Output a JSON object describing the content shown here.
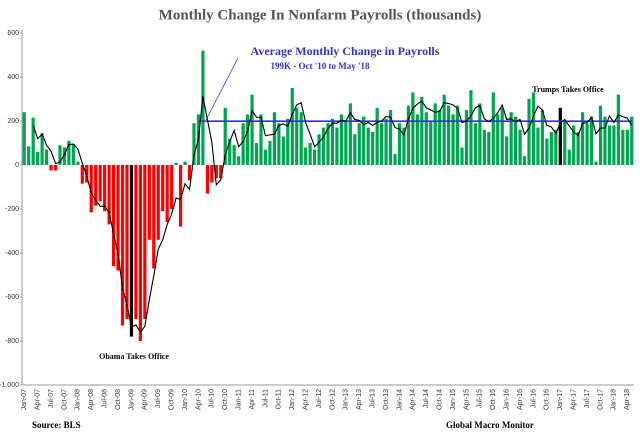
{
  "chart_data": {
    "type": "bar",
    "title": "Monthly Change In Nonfarm  Payrolls (thousands)",
    "categories": [
      "Jan-07",
      null,
      null,
      "Apr-07",
      null,
      null,
      "Jul-07",
      null,
      null,
      "Oct-07",
      null,
      null,
      "Jan-08",
      null,
      null,
      "Apr-08",
      null,
      null,
      "Jul-08",
      null,
      null,
      "Oct-08",
      null,
      null,
      "Jan-09",
      null,
      null,
      "Apr-09",
      null,
      null,
      "Jul-09",
      null,
      null,
      "Oct-09",
      null,
      null,
      "Jan-10",
      null,
      null,
      "Apr-10",
      null,
      null,
      "Jul-10",
      null,
      null,
      "Oct-10",
      null,
      null,
      "Jan-11",
      null,
      null,
      "Apr-11",
      null,
      null,
      "Jul-11",
      null,
      null,
      "Oct-11",
      null,
      null,
      "Jan-12",
      null,
      null,
      "Apr-12",
      null,
      null,
      "Jul-12",
      null,
      null,
      "Oct-12",
      null,
      null,
      "Jan-13",
      null,
      null,
      "Apr-13",
      null,
      null,
      "Jul-13",
      null,
      null,
      "Oct-13",
      null,
      null,
      "Jan-14",
      null,
      null,
      "Apr-14",
      null,
      null,
      "Jul-14",
      null,
      null,
      "Oct-14",
      null,
      null,
      "Jan-15",
      null,
      null,
      "Apr-15",
      null,
      null,
      "Jul-15",
      null,
      null,
      "Oct-15",
      null,
      null,
      "Jan-16",
      null,
      null,
      "Apr-16",
      null,
      null,
      "Jul-16",
      null,
      null,
      "Oct-16",
      null,
      null,
      "Jan-17",
      null,
      null,
      "Apr-17",
      null,
      null,
      "Jul-17",
      null,
      null,
      "Oct-17",
      null,
      null,
      "Jan-18",
      null,
      null,
      "Apr-18",
      null
    ],
    "values": [
      240,
      85,
      215,
      60,
      145,
      70,
      -25,
      -25,
      90,
      80,
      110,
      95,
      15,
      -85,
      -80,
      -215,
      -185,
      -165,
      -210,
      -270,
      -460,
      -480,
      -730,
      -700,
      -780,
      -700,
      -800,
      -700,
      -340,
      -470,
      -340,
      -210,
      -260,
      -200,
      10,
      -280,
      15,
      -70,
      190,
      230,
      520,
      -130,
      -80,
      -60,
      -60,
      260,
      120,
      90,
      40,
      190,
      230,
      320,
      100,
      230,
      70,
      110,
      240,
      190,
      130,
      210,
      350,
      260,
      240,
      80,
      100,
      70,
      140,
      170,
      190,
      210,
      170,
      230,
      200,
      280,
      140,
      190,
      220,
      170,
      150,
      260,
      190,
      210,
      250,
      50,
      190,
      170,
      270,
      330,
      230,
      310,
      240,
      200,
      280,
      250,
      320,
      270,
      230,
      270,
      80,
      250,
      340,
      190,
      280,
      160,
      150,
      330,
      230,
      260,
      130,
      240,
      220,
      160,
      40,
      300,
      330,
      170,
      250,
      120,
      150,
      160,
      260,
      200,
      70,
      180,
      150,
      240,
      190,
      220,
      15,
      270,
      220,
      180,
      180,
      320,
      160,
      160,
      220
    ],
    "trend_values": [
      null,
      null,
      180,
      120,
      140,
      90,
      63,
      7,
      13,
      48,
      93,
      95,
      73,
      8,
      -50,
      -127,
      -160,
      -188,
      -187,
      -215,
      -313,
      -403,
      -557,
      -637,
      -737,
      -727,
      -760,
      -733,
      -613,
      -503,
      -383,
      -340,
      -270,
      -223,
      -150,
      -157,
      -85,
      -112,
      45,
      117,
      313,
      207,
      103,
      -90,
      -67,
      47,
      107,
      157,
      83,
      107,
      153,
      247,
      217,
      217,
      133,
      137,
      140,
      180,
      187,
      177,
      230,
      273,
      283,
      193,
      140,
      83,
      103,
      127,
      167,
      190,
      190,
      203,
      200,
      237,
      207,
      203,
      183,
      193,
      180,
      193,
      200,
      220,
      217,
      170,
      163,
      137,
      210,
      257,
      277,
      290,
      260,
      250,
      240,
      243,
      283,
      280,
      273,
      257,
      193,
      200,
      223,
      260,
      270,
      210,
      197,
      213,
      237,
      273,
      207,
      210,
      197,
      207,
      140,
      167,
      223,
      267,
      250,
      180,
      173,
      143,
      190,
      207,
      177,
      150,
      133,
      190,
      193,
      217,
      142,
      168,
      168,
      223,
      193,
      227,
      220,
      213,
      180
    ],
    "colors": {
      "positive": "#00a651",
      "negative": "#ff0000",
      "highlight": "#000000",
      "trend": "#000000",
      "average": "#3333cc"
    },
    "highlight_categories": [
      "Jan-09",
      "Jan-17"
    ],
    "average_line": {
      "value": 199,
      "start": "Apr-10"
    },
    "ylim": [
      -1000,
      600
    ],
    "yticks": [
      {
        "value": -1000,
        "label": "-1,000"
      },
      -800,
      -600,
      -400,
      -200,
      0,
      200,
      400,
      600
    ],
    "annotations": [
      {
        "text": "Average Monthly Change in Payrolls"
      },
      {
        "text": "199K - Oct '10 to May '18"
      },
      {
        "text": "Trumps  Takes Office"
      },
      {
        "text": "Obama  Takes Office"
      }
    ],
    "source": "Source:  BLS",
    "credit": "Global Macro Monitor"
  }
}
